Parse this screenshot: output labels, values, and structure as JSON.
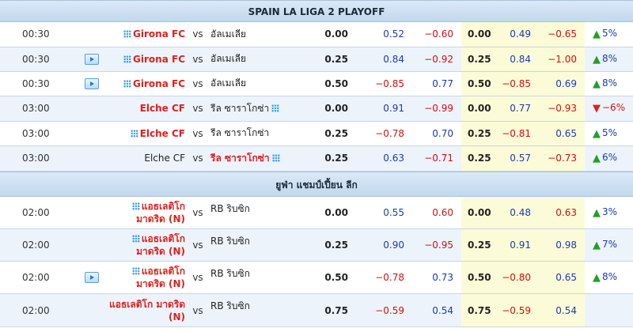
{
  "sections": [
    {
      "title": "SPAIN LA LIGA 2 PLAYOFF",
      "rows": [
        {
          "time": "00:30",
          "tv": false,
          "home": "Girona FC",
          "home_fav": true,
          "home_red": true,
          "away": "อัลเมเลีย",
          "away_fav": false,
          "away_red": false,
          "hcp1": "0.00",
          "o1": "0.52",
          "o2": "−0.60",
          "o2_red": true,
          "o1_red": false,
          "hcp2": "0.00",
          "o3": "0.49",
          "o3_red": false,
          "o4": "−0.65",
          "o4_red": true,
          "change": "5%",
          "dir": "up"
        },
        {
          "time": "00:30",
          "tv": true,
          "home": "Girona FC",
          "home_fav": true,
          "home_red": true,
          "away": "อัลเมเลีย",
          "away_fav": false,
          "away_red": false,
          "hcp1": "0.25",
          "o1": "0.84",
          "o2": "−0.92",
          "o2_red": true,
          "o1_red": false,
          "hcp2": "0.25",
          "o3": "0.84",
          "o3_red": false,
          "o4": "−1.00",
          "o4_red": true,
          "change": "8%",
          "dir": "up"
        },
        {
          "time": "00:30",
          "tv": true,
          "home": "Girona FC",
          "home_fav": true,
          "home_red": true,
          "away": "อัลเมเลีย",
          "away_fav": false,
          "away_red": false,
          "hcp1": "0.50",
          "o1": "−0.85",
          "o2": "0.77",
          "o2_red": false,
          "o1_red": true,
          "hcp2": "0.50",
          "o3": "−0.85",
          "o3_red": true,
          "o4": "0.69",
          "o4_red": false,
          "change": "8%",
          "dir": "up"
        },
        {
          "time": "03:00",
          "tv": false,
          "home": "Elche CF",
          "home_fav": false,
          "home_red": true,
          "away": "รีล ซาราโกซ่า",
          "away_fav": true,
          "away_red": false,
          "hcp1": "0.00",
          "o1": "0.91",
          "o2": "−0.99",
          "o2_red": true,
          "o1_red": false,
          "hcp2": "0.00",
          "o3": "0.77",
          "o3_red": false,
          "o4": "−0.93",
          "o4_red": true,
          "change": "−6%",
          "dir": "down"
        },
        {
          "time": "03:00",
          "tv": false,
          "home": "Elche CF",
          "home_fav": true,
          "home_red": true,
          "away": "รีล ซาราโกซ่า",
          "away_fav": false,
          "away_red": false,
          "hcp1": "0.25",
          "o1": "−0.78",
          "o2": "0.70",
          "o2_red": false,
          "o1_red": true,
          "hcp2": "0.25",
          "o3": "−0.81",
          "o3_red": true,
          "o4": "0.65",
          "o4_red": false,
          "change": "5%",
          "dir": "up"
        },
        {
          "time": "03:00",
          "tv": false,
          "home": "Elche CF",
          "home_fav": false,
          "home_red": false,
          "away": "รีล ซาราโกซ่า",
          "away_fav": true,
          "away_red": true,
          "hcp1": "0.25",
          "o1": "0.63",
          "o2": "−0.71",
          "o2_red": true,
          "o1_red": false,
          "hcp2": "0.25",
          "o3": "0.57",
          "o3_red": false,
          "o4": "−0.73",
          "o4_red": true,
          "change": "6%",
          "dir": "up"
        }
      ]
    },
    {
      "title": "ยูฟ่า แชมป์เปี้ยน ลีก",
      "rows": [
        {
          "time": "02:00",
          "tv": false,
          "home_lines": [
            "แอธเลติโก",
            "มาดริด (N)"
          ],
          "home_fav": true,
          "home_red": true,
          "away": "RB ริบซิก",
          "away_fav": false,
          "away_red": false,
          "hcp1": "0.00",
          "o1": "0.55",
          "o2": "0.60",
          "o2_red": true,
          "o1_red": false,
          "hcp2": "0.00",
          "o3": "0.48",
          "o3_red": false,
          "o4": "0.63",
          "o4_red": true,
          "change": "3%",
          "dir": "up"
        },
        {
          "time": "02:00",
          "tv": false,
          "home_lines": [
            "แอธเลติโก",
            "มาดริด (N)"
          ],
          "home_fav": true,
          "home_red": true,
          "away": "RB ริบซิก",
          "away_fav": false,
          "away_red": false,
          "hcp1": "0.25",
          "o1": "0.90",
          "o2": "−0.95",
          "o2_red": true,
          "o1_red": false,
          "hcp2": "0.25",
          "o3": "0.91",
          "o3_red": false,
          "o4": "0.98",
          "o4_red": false,
          "change": "7%",
          "dir": "up"
        },
        {
          "time": "02:00",
          "tv": true,
          "home_lines": [
            "แอธเลติโก",
            "มาดริด (N)"
          ],
          "home_fav": true,
          "home_red": true,
          "away": "RB ริบซิก",
          "away_fav": false,
          "away_red": false,
          "hcp1": "0.50",
          "o1": "−0.78",
          "o2": "0.73",
          "o2_red": false,
          "o1_red": true,
          "hcp2": "0.50",
          "o3": "−0.80",
          "o3_red": true,
          "o4": "0.65",
          "o4_red": false,
          "change": "8%",
          "dir": "up"
        },
        {
          "time": "02:00",
          "tv": false,
          "home_lines": [
            "แอธเลติโก มาดริด",
            "(N)"
          ],
          "home_fav": false,
          "home_red": true,
          "away": "RB ริบซิก",
          "away_fav": false,
          "away_red": false,
          "hcp1": "0.75",
          "o1": "−0.59",
          "o2": "0.54",
          "o2_red": false,
          "o1_red": true,
          "hcp2": "0.75",
          "o3": "−0.59",
          "o3_red": true,
          "o4": "0.54",
          "o4_red": false,
          "change": "",
          "dir": ""
        }
      ]
    }
  ],
  "vs_label": "vs",
  "colors": {
    "header_bg": "#c2d8ee",
    "alt_row": "#edf3fb",
    "highlight": "#fcfbd8",
    "odds_blue": "#1a3bb5",
    "odds_red": "#d01010",
    "team_red": "#e0201c"
  }
}
